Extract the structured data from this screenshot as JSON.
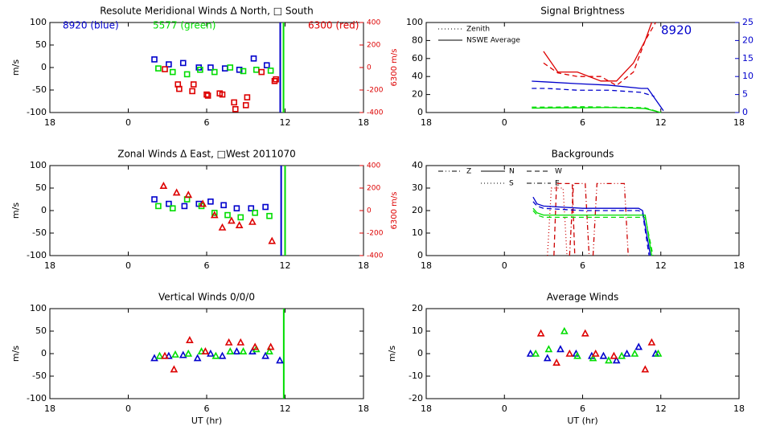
{
  "chart_data": [
    {
      "type": "scatter",
      "title": "Resolute Meridional Winds Δ North, □ South",
      "ylabel": "m/s",
      "y2label": "6300 m/s",
      "y2color": "#dd0000",
      "xlim": [
        -6,
        18
      ],
      "xticks": [
        {
          "value": -6,
          "label": "18"
        },
        0,
        6,
        12,
        18
      ],
      "ylim": [
        -100,
        100
      ],
      "yticks": [
        -100,
        -50,
        0,
        50,
        100
      ],
      "y2lim": [
        -400,
        400
      ],
      "y2ticks": [
        -400,
        -200,
        0,
        200,
        400
      ],
      "annotations": [
        {
          "text": "8920 (blue)",
          "color": "#0000cc"
        },
        {
          "text": "5577 (green)",
          "color": "#00dd00"
        },
        {
          "text": "6300 (red)",
          "color": "#dd0000"
        }
      ],
      "vlines": [
        {
          "x": 11.63,
          "color": "#0000cc"
        },
        {
          "x": 11.88,
          "color": "#00dd00"
        }
      ],
      "series": [
        {
          "color": "#0000cc",
          "marker": "square",
          "x": [
            2.0,
            3.1,
            4.2,
            5.4,
            6.3,
            7.4,
            8.5,
            9.6,
            10.6
          ],
          "values": [
            18,
            7,
            10,
            0,
            0,
            -2,
            -5,
            20,
            5
          ]
        },
        {
          "color": "#00dd00",
          "marker": "square",
          "x": [
            2.3,
            3.4,
            4.5,
            5.5,
            6.6,
            7.8,
            8.8,
            9.8,
            10.9
          ],
          "values": [
            -2,
            -10,
            -15,
            -5,
            -10,
            0,
            -8,
            -5,
            -7
          ]
        },
        {
          "color": "#dd0000",
          "marker": "square",
          "axis": "y2",
          "x": [
            2.8,
            3.8,
            3.9,
            4.9,
            5.0,
            6.0,
            6.1,
            7.0,
            7.2,
            8.1,
            8.2,
            9.0,
            9.1,
            10.2,
            11.2,
            11.3
          ],
          "values": [
            -15,
            -150,
            -190,
            -210,
            -150,
            -240,
            -250,
            -230,
            -240,
            -310,
            -370,
            -335,
            -265,
            -40,
            -120,
            -105
          ]
        }
      ]
    },
    {
      "type": "line",
      "title": "Signal Brightness",
      "y2color": "#0000cc",
      "xlim": [
        -6,
        18
      ],
      "xticks": [
        {
          "value": -6,
          "label": "18"
        },
        0,
        6,
        12,
        18
      ],
      "ylim": [
        0,
        100
      ],
      "yticks": [
        0,
        20,
        40,
        60,
        80,
        100
      ],
      "y2lim": [
        0,
        25
      ],
      "y2ticks": [
        0,
        5,
        10,
        15,
        20,
        25
      ],
      "annotations": [
        {
          "text": "8920",
          "color": "#0000cc"
        }
      ],
      "legend": [
        {
          "name": "Zenith",
          "dash": "dotted"
        },
        {
          "name": "NSWE Average",
          "dash": "solid"
        }
      ],
      "series": [
        {
          "color": "#dd0000",
          "dash": "solid",
          "x": [
            3.0,
            4.1,
            5.6,
            7.4,
            8.6,
            9.9,
            10.8,
            11.3
          ],
          "values": [
            68,
            45,
            45,
            35,
            35,
            55,
            80,
            100
          ]
        },
        {
          "color": "#dd0000",
          "dash": "dashed",
          "x": [
            3.0,
            4.1,
            5.6,
            7.4,
            8.6,
            9.9,
            10.8,
            11.6
          ],
          "values": [
            55,
            44,
            40,
            40,
            30,
            45,
            80,
            100
          ]
        },
        {
          "color": "#0000cc",
          "dash": "solid",
          "axis": "y2",
          "x": [
            2.1,
            3.2,
            5.6,
            8.0,
            10.5,
            11.0,
            12.2
          ],
          "values": [
            8.7,
            8.5,
            8,
            7.6,
            6.7,
            6.7,
            0.5
          ]
        },
        {
          "color": "#0000cc",
          "dash": "dashed",
          "axis": "y2",
          "x": [
            2.1,
            3.2,
            5.6,
            8.0,
            10.5,
            11.5
          ],
          "values": [
            6.7,
            6.7,
            6.2,
            6.2,
            5.6,
            4.5
          ]
        },
        {
          "color": "#00dd00",
          "dash": "solid",
          "axis": "y2",
          "x": [
            2.1,
            4.0,
            6.0,
            8.0,
            10.0,
            10.8,
            12.0
          ],
          "values": [
            1.2,
            1.3,
            1.3,
            1.4,
            1.2,
            1.1,
            0
          ]
        },
        {
          "color": "#00dd00",
          "dash": "dashed",
          "axis": "y2",
          "x": [
            2.1,
            4.0,
            6.0,
            8.0,
            10.0,
            10.8,
            12.0
          ],
          "values": [
            1.5,
            1.5,
            1.6,
            1.5,
            1.4,
            1.3,
            0
          ]
        }
      ]
    },
    {
      "type": "scatter",
      "title": "Zonal Winds Δ East, □West 2011070",
      "ylabel": "m/s",
      "y2label": "6300 m/s",
      "y2color": "#dd0000",
      "xlim": [
        -6,
        18
      ],
      "xticks": [
        {
          "value": -6,
          "label": "18"
        },
        0,
        6,
        12,
        18
      ],
      "ylim": [
        -100,
        100
      ],
      "yticks": [
        -100,
        -50,
        0,
        50,
        100
      ],
      "y2lim": [
        -400,
        400
      ],
      "y2ticks": [
        -400,
        -200,
        0,
        200,
        400
      ],
      "vlines": [
        {
          "x": 11.7,
          "color": "#0000cc"
        },
        {
          "x": 12.0,
          "color": "#00dd00"
        }
      ],
      "series": [
        {
          "color": "#0000cc",
          "marker": "square",
          "x": [
            2.0,
            3.1,
            4.3,
            5.4,
            6.3,
            7.3,
            8.3,
            9.4,
            10.5
          ],
          "values": [
            25,
            15,
            10,
            15,
            20,
            12,
            5,
            5,
            8
          ]
        },
        {
          "color": "#00dd00",
          "marker": "square",
          "x": [
            2.3,
            3.4,
            4.5,
            5.6,
            6.6,
            7.6,
            8.6,
            9.7,
            10.8
          ],
          "values": [
            10,
            5,
            25,
            10,
            -5,
            -10,
            -15,
            -5,
            -12
          ]
        },
        {
          "color": "#dd0000",
          "marker": "triangle",
          "axis": "y2",
          "x": [
            2.7,
            3.7,
            4.6,
            5.7,
            6.6,
            7.2,
            7.9,
            8.5,
            9.5,
            11.0
          ],
          "values": [
            220,
            160,
            140,
            60,
            -40,
            -150,
            -90,
            -130,
            -100,
            -270
          ]
        }
      ]
    },
    {
      "type": "line",
      "title": "Backgrounds",
      "xlim": [
        -6,
        18
      ],
      "xticks": [
        {
          "value": -6,
          "label": "18"
        },
        0,
        6,
        12,
        18
      ],
      "ylim": [
        0,
        40
      ],
      "yticks": [
        0,
        10,
        20,
        30,
        40
      ],
      "legend": [
        {
          "name": "Z",
          "dash": "dashdotdot"
        },
        {
          "name": "N",
          "dash": "solid"
        },
        {
          "name": "W",
          "dash": "dashed"
        },
        {
          "name": "S",
          "dash": "dotted"
        },
        {
          "name": "E",
          "dash": "dashdot"
        }
      ],
      "series": [
        {
          "color": "#cc0000",
          "dash": "dotted",
          "x": [
            3.3,
            3.6,
            4.5,
            4.8
          ],
          "values": [
            0,
            30,
            30,
            0
          ]
        },
        {
          "color": "#cc0000",
          "dash": "dashed",
          "x": [
            3.8,
            4.0,
            5.2,
            5.4
          ],
          "values": [
            0,
            32,
            32,
            0
          ]
        },
        {
          "color": "#cc0000",
          "dash": "dashdot",
          "x": [
            5.0,
            5.3,
            6.2,
            6.5
          ],
          "values": [
            0,
            32,
            32,
            0
          ]
        },
        {
          "color": "#cc0000",
          "dash": "dashdotdot",
          "x": [
            6.8,
            7.1,
            9.2,
            9.5
          ],
          "values": [
            0,
            32,
            32,
            0
          ]
        },
        {
          "color": "#0000cc",
          "dash": "solid",
          "x": [
            2.2,
            2.5,
            3.0,
            6.0,
            9.0,
            10.3,
            10.6,
            11.2
          ],
          "values": [
            26,
            23,
            22,
            21,
            21,
            21,
            20,
            0
          ]
        },
        {
          "color": "#0000cc",
          "dash": "dashed",
          "x": [
            2.2,
            2.5,
            3.0,
            6.0,
            9.0,
            10.3,
            10.6,
            11.1
          ],
          "values": [
            24,
            22,
            21,
            20,
            20,
            20,
            19,
            0
          ]
        },
        {
          "color": "#00dd00",
          "dash": "solid",
          "x": [
            2.2,
            2.5,
            3.0,
            6.0,
            9.0,
            10.3,
            10.8,
            11.3
          ],
          "values": [
            21,
            19,
            18,
            18,
            18,
            18,
            18,
            0
          ]
        },
        {
          "color": "#00dd00",
          "dash": "dashed",
          "x": [
            2.2,
            2.5,
            3.0,
            6.0,
            9.0,
            10.3,
            10.8,
            11.4
          ],
          "values": [
            20,
            18,
            17,
            17,
            17,
            17,
            17,
            0
          ]
        }
      ]
    },
    {
      "type": "scatter",
      "title": "Vertical Winds 0/0/0",
      "ylabel": "m/s",
      "xlabel": "UT (hr)",
      "xlim": [
        -6,
        18
      ],
      "xticks": [
        {
          "value": -6,
          "label": "18"
        },
        0,
        6,
        12,
        18
      ],
      "ylim": [
        -100,
        100
      ],
      "yticks": [
        -100,
        -50,
        0,
        50,
        100
      ],
      "vlines": [
        {
          "x": 11.9,
          "color": "#00dd00"
        }
      ],
      "series": [
        {
          "color": "#0000cc",
          "marker": "triangle",
          "x": [
            2.0,
            3.1,
            4.2,
            5.3,
            6.3,
            7.2,
            8.3,
            9.5,
            10.5,
            11.6
          ],
          "values": [
            -10,
            -5,
            -3,
            -10,
            0,
            -5,
            5,
            5,
            -5,
            -15
          ]
        },
        {
          "color": "#00dd00",
          "marker": "triangle",
          "x": [
            2.4,
            3.6,
            4.6,
            5.6,
            6.7,
            7.8,
            8.8,
            9.8,
            10.8
          ],
          "values": [
            -5,
            -2,
            0,
            5,
            -5,
            5,
            5,
            10,
            5
          ]
        },
        {
          "color": "#dd0000",
          "marker": "triangle",
          "x": [
            2.8,
            3.5,
            4.7,
            5.9,
            7.7,
            8.6,
            9.7,
            10.9
          ],
          "values": [
            -5,
            -35,
            30,
            5,
            25,
            25,
            15,
            15
          ]
        }
      ]
    },
    {
      "type": "scatter",
      "title": "Average Winds",
      "ylabel": "m/s",
      "xlabel": "UT (hr)",
      "xlim": [
        -6,
        18
      ],
      "xticks": [
        {
          "value": -6,
          "label": "18"
        },
        0,
        6,
        12,
        18
      ],
      "ylim": [
        -20,
        20
      ],
      "yticks": [
        -20,
        -10,
        0,
        10,
        20
      ],
      "series": [
        {
          "color": "#0000cc",
          "marker": "triangle",
          "x": [
            2.0,
            3.3,
            4.3,
            5.5,
            6.7,
            7.6,
            8.6,
            9.4,
            10.3,
            11.6
          ],
          "values": [
            0,
            -2,
            2,
            0,
            -1,
            -1,
            -3,
            0,
            3,
            0
          ]
        },
        {
          "color": "#00dd00",
          "marker": "triangle",
          "x": [
            2.4,
            3.4,
            4.6,
            5.6,
            6.8,
            8.0,
            9.0,
            10.0,
            11.8
          ],
          "values": [
            0,
            2,
            10,
            -1,
            -2,
            -3,
            -1,
            0,
            0
          ]
        },
        {
          "color": "#dd0000",
          "marker": "triangle",
          "x": [
            2.8,
            4.0,
            5.0,
            6.2,
            7.0,
            8.4,
            10.8,
            11.3
          ],
          "values": [
            9,
            -4,
            0,
            9,
            0,
            -1,
            -7,
            5
          ]
        }
      ]
    }
  ]
}
